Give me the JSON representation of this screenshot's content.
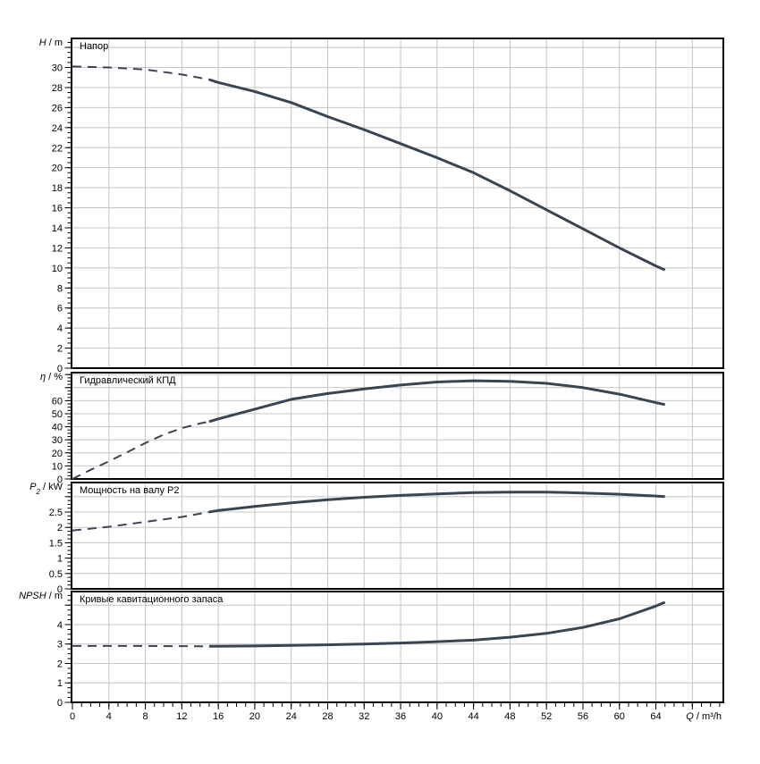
{
  "page": {
    "background": "#ffffff"
  },
  "colors": {
    "curve": "#3a4553",
    "grid": "#c4c4c4",
    "axis": "#000000",
    "text": "#000000"
  },
  "x_axis": {
    "label_var": "Q",
    "label_rest": " / m³/h",
    "min": 0,
    "max": 71.4,
    "major_step": 4,
    "minor_step": 1,
    "label_max": 64,
    "tick_labels": [
      0,
      4,
      8,
      12,
      16,
      20,
      24,
      28,
      32,
      36,
      40,
      44,
      48,
      52,
      56,
      60,
      64
    ]
  },
  "chart_data": [
    {
      "type": "line",
      "title": "Напор",
      "y_var": "H",
      "y_sub": "",
      "y_rest": " / m",
      "ylim": [
        0,
        32.9
      ],
      "y_major": 2,
      "y_minor": 0.5,
      "y_label_max": 30,
      "grid": true,
      "legend": "none",
      "series": [
        {
          "name": "head-dashed",
          "style": "dashed",
          "points": [
            [
              0,
              30.1
            ],
            [
              4,
              30.0
            ],
            [
              8,
              29.8
            ],
            [
              12,
              29.3
            ],
            [
              15,
              28.8
            ]
          ]
        },
        {
          "name": "head-solid",
          "style": "solid",
          "points": [
            [
              15,
              28.8
            ],
            [
              16,
              28.5
            ],
            [
              20,
              27.6
            ],
            [
              24,
              26.5
            ],
            [
              28,
              25.1
            ],
            [
              32,
              23.8
            ],
            [
              36,
              22.4
            ],
            [
              40,
              21.0
            ],
            [
              44,
              19.5
            ],
            [
              48,
              17.7
            ],
            [
              52,
              15.8
            ],
            [
              56,
              13.9
            ],
            [
              60,
              12.0
            ],
            [
              64,
              10.2
            ],
            [
              65,
              9.8
            ]
          ]
        }
      ]
    },
    {
      "type": "line",
      "title": "Гидравлический КПД",
      "y_var": "η",
      "y_sub": "",
      "y_rest": " / %",
      "ylim": [
        0,
        81.5
      ],
      "y_major": 10,
      "y_minor": 2.5,
      "y_label_max": 60,
      "grid": true,
      "legend": "none",
      "series": [
        {
          "name": "efficiency-dashed",
          "style": "dashed",
          "points": [
            [
              0,
              0
            ],
            [
              2,
              7
            ],
            [
              4,
              13.5
            ],
            [
              6,
              20.5
            ],
            [
              8,
              27.5
            ],
            [
              10,
              34
            ],
            [
              12,
              39
            ],
            [
              14,
              42.5
            ],
            [
              15,
              44
            ]
          ]
        },
        {
          "name": "efficiency-solid",
          "style": "solid",
          "points": [
            [
              15,
              44
            ],
            [
              16,
              46
            ],
            [
              20,
              53.5
            ],
            [
              24,
              61
            ],
            [
              28,
              65.5
            ],
            [
              32,
              69
            ],
            [
              36,
              72
            ],
            [
              40,
              74.3
            ],
            [
              44,
              75.3
            ],
            [
              48,
              74.8
            ],
            [
              52,
              73.3
            ],
            [
              56,
              70
            ],
            [
              60,
              65
            ],
            [
              64,
              58.5
            ],
            [
              65,
              57
            ]
          ]
        }
      ]
    },
    {
      "type": "line",
      "title": "Мощность на валу P2",
      "y_var": "P",
      "y_sub": "2",
      "y_rest": " / kW",
      "ylim": [
        0,
        3.46
      ],
      "y_major": 0.5,
      "y_minor": 0.125,
      "y_label_max": 2.5,
      "grid": true,
      "legend": "none",
      "series": [
        {
          "name": "power-dashed",
          "style": "dashed",
          "points": [
            [
              0,
              1.9
            ],
            [
              4,
              2.02
            ],
            [
              8,
              2.18
            ],
            [
              12,
              2.34
            ],
            [
              15,
              2.5
            ]
          ]
        },
        {
          "name": "power-solid",
          "style": "solid",
          "points": [
            [
              15,
              2.5
            ],
            [
              16,
              2.55
            ],
            [
              20,
              2.68
            ],
            [
              24,
              2.8
            ],
            [
              28,
              2.9
            ],
            [
              32,
              2.98
            ],
            [
              36,
              3.04
            ],
            [
              40,
              3.09
            ],
            [
              44,
              3.13
            ],
            [
              48,
              3.15
            ],
            [
              52,
              3.15
            ],
            [
              56,
              3.12
            ],
            [
              60,
              3.08
            ],
            [
              64,
              3.02
            ],
            [
              65,
              3.0
            ]
          ]
        }
      ]
    },
    {
      "type": "line",
      "title": "Кривые кавитационного запаса",
      "y_var": "NPSH",
      "y_sub": "",
      "y_rest": " / m",
      "ylim": [
        0,
        5.7
      ],
      "y_major": 1,
      "y_minor": 0.25,
      "y_label_max": 4,
      "grid": true,
      "legend": "none",
      "series": [
        {
          "name": "npsh-dashed",
          "style": "dashed",
          "points": [
            [
              0,
              2.9
            ],
            [
              8,
              2.9
            ],
            [
              15,
              2.88
            ]
          ]
        },
        {
          "name": "npsh-solid",
          "style": "solid",
          "points": [
            [
              15,
              2.88
            ],
            [
              20,
              2.9
            ],
            [
              24,
              2.93
            ],
            [
              28,
              2.96
            ],
            [
              32,
              3.0
            ],
            [
              36,
              3.05
            ],
            [
              40,
              3.12
            ],
            [
              44,
              3.2
            ],
            [
              48,
              3.35
            ],
            [
              52,
              3.55
            ],
            [
              56,
              3.85
            ],
            [
              60,
              4.3
            ],
            [
              64,
              4.95
            ],
            [
              65,
              5.15
            ]
          ]
        }
      ]
    }
  ]
}
